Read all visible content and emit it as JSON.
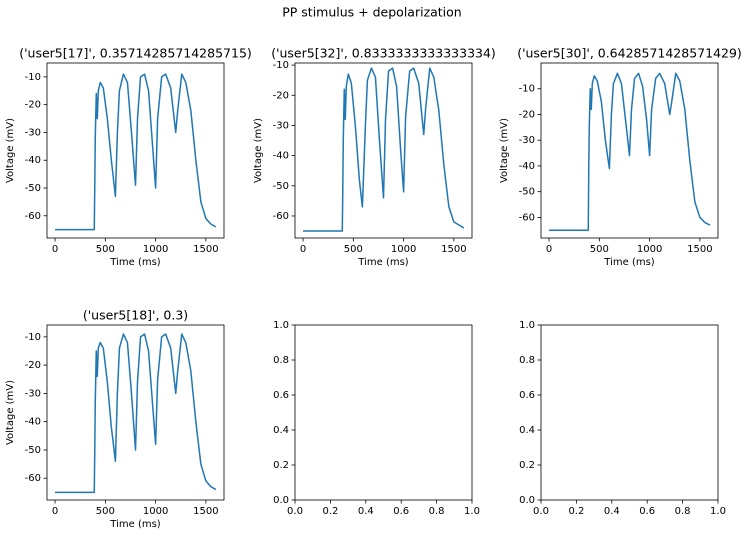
{
  "title": "PP stimulus + depolarization",
  "chart_data": [
    {
      "type": "line",
      "title": "('user5[17]', 0.35714285714285715)",
      "xlabel": "Time (ms)",
      "ylabel": "Voltage (mV)",
      "x": [
        0,
        390,
        395,
        400,
        410,
        420,
        430,
        450,
        480,
        520,
        560,
        600,
        620,
        640,
        680,
        720,
        760,
        800,
        820,
        850,
        890,
        930,
        970,
        1000,
        1020,
        1060,
        1100,
        1150,
        1200,
        1220,
        1260,
        1300,
        1350,
        1400,
        1450,
        1500,
        1550,
        1600
      ],
      "series": [
        {
          "color": "#1f77b4",
          "values": [
            -65,
            -65,
            -49,
            -32,
            -16,
            -25,
            -15,
            -12,
            -14,
            -25,
            -40,
            -53,
            -30,
            -15,
            -9,
            -12,
            -30,
            -49,
            -25,
            -10,
            -9,
            -15,
            -35,
            -50,
            -25,
            -10,
            -9,
            -14,
            -30,
            -22,
            -9,
            -12,
            -22,
            -40,
            -55,
            -61,
            -63,
            -64
          ]
        }
      ],
      "xlim": [
        -80,
        1680
      ],
      "xticks": [
        0,
        500,
        1000,
        1500
      ],
      "ylim": [
        -68,
        -5
      ],
      "yticks": [
        -60,
        -50,
        -40,
        -30,
        -20,
        -10
      ]
    },
    {
      "type": "line",
      "title": "('user5[32]', 0.8333333333333334)",
      "xlabel": "Time (ms)",
      "ylabel": "Voltage (mV)",
      "x": [
        0,
        390,
        395,
        400,
        410,
        420,
        430,
        450,
        480,
        520,
        560,
        590,
        620,
        640,
        680,
        720,
        760,
        800,
        820,
        850,
        890,
        930,
        970,
        1000,
        1020,
        1060,
        1100,
        1150,
        1200,
        1220,
        1260,
        1300,
        1350,
        1400,
        1450,
        1500,
        1550,
        1600
      ],
      "series": [
        {
          "color": "#1f77b4",
          "values": [
            -65,
            -65,
            -52,
            -35,
            -18,
            -28,
            -17,
            -13,
            -16,
            -30,
            -48,
            -57,
            -30,
            -15,
            -11,
            -14,
            -35,
            -54,
            -28,
            -12,
            -11,
            -17,
            -38,
            -52,
            -27,
            -12,
            -11,
            -16,
            -33,
            -24,
            -11,
            -14,
            -25,
            -43,
            -57,
            -62,
            -63,
            -64
          ]
        }
      ],
      "xlim": [
        -80,
        1680
      ],
      "xticks": [
        0,
        500,
        1000,
        1500
      ],
      "ylim": [
        -67.3,
        -9.3
      ],
      "yticks": [
        -60,
        -50,
        -40,
        -30,
        -20,
        -10
      ]
    },
    {
      "type": "line",
      "title": "('user5[30]', 0.6428571428571429)",
      "xlabel": "Time (ms)",
      "ylabel": "Voltage (mV)",
      "x": [
        0,
        390,
        395,
        400,
        410,
        420,
        430,
        450,
        480,
        520,
        560,
        600,
        620,
        640,
        680,
        720,
        760,
        800,
        820,
        850,
        890,
        930,
        970,
        1000,
        1020,
        1060,
        1100,
        1150,
        1200,
        1220,
        1260,
        1300,
        1350,
        1400,
        1450,
        1500,
        1550,
        1600
      ],
      "series": [
        {
          "color": "#1f77b4",
          "values": [
            -65,
            -65,
            -40,
            -25,
            -10,
            -18,
            -8,
            -5,
            -7,
            -15,
            -30,
            -41,
            -20,
            -8,
            -4,
            -8,
            -22,
            -36,
            -18,
            -6,
            -4,
            -9,
            -22,
            -36,
            -18,
            -6,
            -4,
            -8,
            -20,
            -15,
            -4,
            -7,
            -18,
            -38,
            -54,
            -60,
            -62,
            -63
          ]
        }
      ],
      "xlim": [
        -80,
        1680
      ],
      "xticks": [
        0,
        500,
        1000,
        1500
      ],
      "ylim": [
        -68,
        0
      ],
      "yticks": [
        -60,
        -50,
        -40,
        -30,
        -20,
        -10
      ]
    },
    {
      "type": "line",
      "title": "('user5[18]', 0.3)",
      "xlabel": "Time (ms)",
      "ylabel": "Voltage (mV)",
      "x": [
        0,
        390,
        395,
        400,
        410,
        420,
        430,
        450,
        480,
        520,
        560,
        600,
        620,
        640,
        680,
        720,
        760,
        800,
        820,
        850,
        890,
        930,
        970,
        1000,
        1020,
        1060,
        1100,
        1150,
        1200,
        1220,
        1260,
        1300,
        1350,
        1400,
        1450,
        1500,
        1550,
        1600
      ],
      "series": [
        {
          "color": "#1f77b4",
          "values": [
            -65,
            -65,
            -50,
            -33,
            -15,
            -24,
            -14,
            -12,
            -14,
            -26,
            -42,
            -54,
            -30,
            -14,
            -9,
            -12,
            -30,
            -50,
            -26,
            -10,
            -9,
            -15,
            -34,
            -48,
            -25,
            -10,
            -9,
            -14,
            -30,
            -22,
            -9,
            -12,
            -22,
            -40,
            -55,
            -61,
            -63,
            -64
          ]
        }
      ],
      "xlim": [
        -80,
        1680
      ],
      "xticks": [
        0,
        500,
        1000,
        1500
      ],
      "ylim": [
        -67.7,
        -5.8
      ],
      "yticks": [
        -60,
        -50,
        -40,
        -30,
        -20,
        -10
      ]
    },
    {
      "type": "line",
      "xlim": [
        0,
        1
      ],
      "ylim": [
        0,
        1
      ],
      "xticks": [
        {
          "value": 0,
          "label": "0.0"
        },
        {
          "value": 0.2,
          "label": "0.2"
        },
        {
          "value": 0.4,
          "label": "0.4"
        },
        {
          "value": 0.6,
          "label": "0.6"
        },
        {
          "value": 0.8,
          "label": "0.8"
        },
        {
          "value": 1,
          "label": "1.0"
        }
      ],
      "yticks": [
        {
          "value": 0,
          "label": "0.0"
        },
        {
          "value": 0.2,
          "label": "0.2"
        },
        {
          "value": 0.4,
          "label": "0.4"
        },
        {
          "value": 0.6,
          "label": "0.6"
        },
        {
          "value": 0.8,
          "label": "0.8"
        },
        {
          "value": 1,
          "label": "1.0"
        }
      ]
    },
    {
      "type": "line",
      "xlim": [
        0,
        1
      ],
      "ylim": [
        0,
        1
      ],
      "xticks": [
        {
          "value": 0,
          "label": "0.0"
        },
        {
          "value": 0.2,
          "label": "0.2"
        },
        {
          "value": 0.4,
          "label": "0.4"
        },
        {
          "value": 0.6,
          "label": "0.6"
        },
        {
          "value": 0.8,
          "label": "0.8"
        },
        {
          "value": 1,
          "label": "1.0"
        }
      ],
      "yticks": [
        {
          "value": 0,
          "label": "0.0"
        },
        {
          "value": 0.2,
          "label": "0.2"
        },
        {
          "value": 0.4,
          "label": "0.4"
        },
        {
          "value": 0.6,
          "label": "0.6"
        },
        {
          "value": 0.8,
          "label": "0.8"
        },
        {
          "value": 1,
          "label": "1.0"
        }
      ]
    }
  ]
}
